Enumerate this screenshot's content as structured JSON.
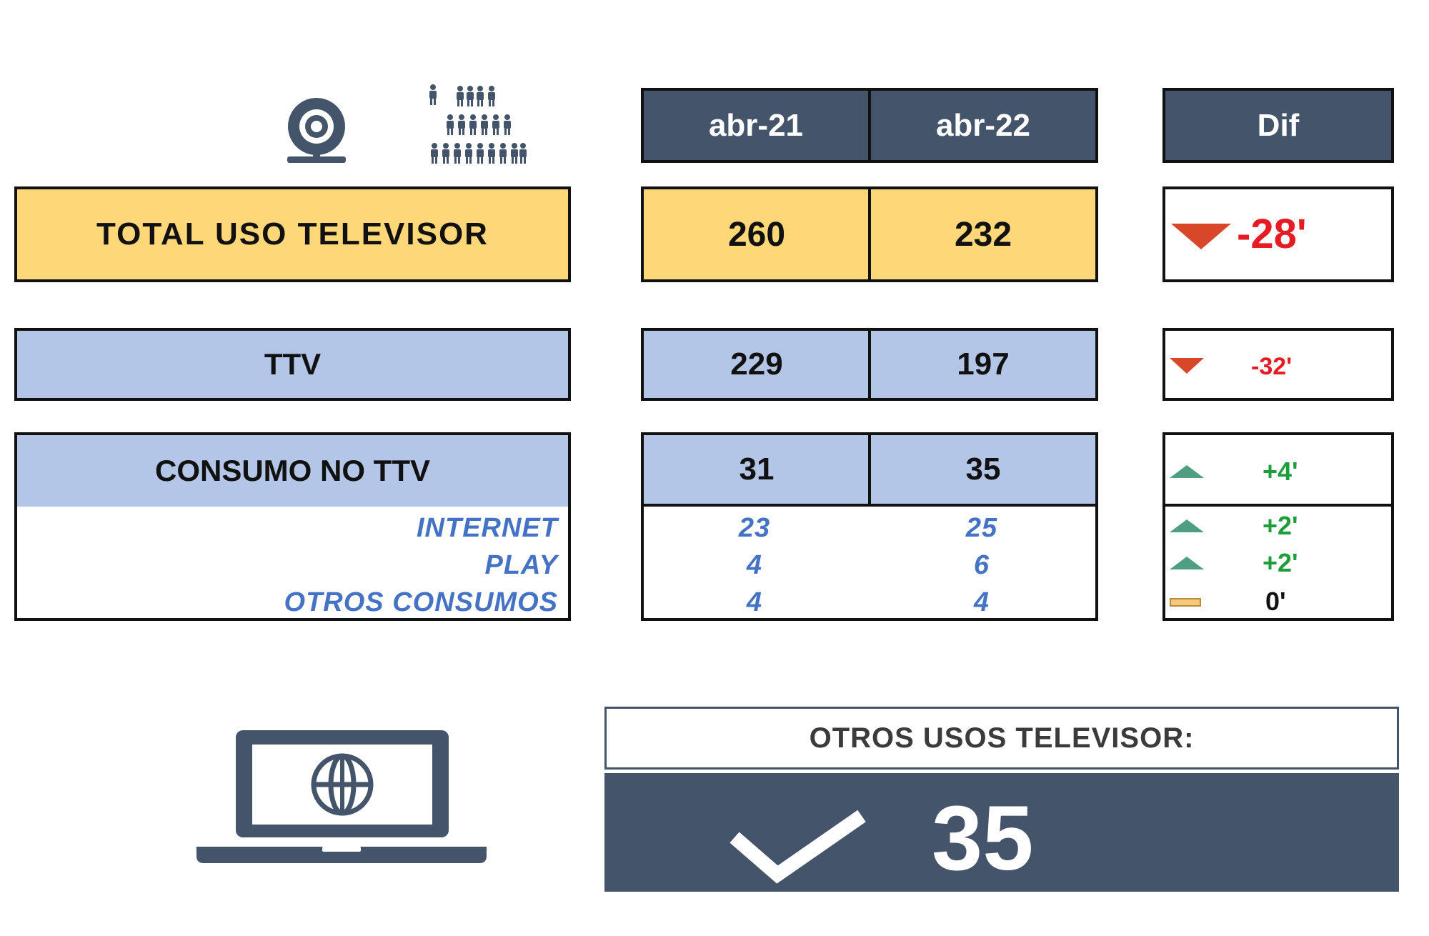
{
  "header": {
    "col1": "abr-21",
    "col2": "abr-22",
    "dif": "Dif"
  },
  "icons": {
    "top_left": "webcam-icon",
    "top_right": "people-group-icon",
    "bottom_left": "laptop-globe-icon",
    "checkmark": "checkmark-icon"
  },
  "rows": {
    "total": {
      "label": "TOTAL USO TELEVISOR",
      "v1": "260",
      "v2": "232",
      "dif": "-28'"
    },
    "ttv": {
      "label": "TTV",
      "v1": "229",
      "v2": "197",
      "dif": "-32'"
    },
    "no_ttv": {
      "label": "CONSUMO NO TTV",
      "v1": "31",
      "v2": "35",
      "dif": "+4'"
    }
  },
  "sub_rows": [
    {
      "label": "INTERNET",
      "v1": "23",
      "v2": "25",
      "dif": "+2'"
    },
    {
      "label": "PLAY",
      "v1": "4",
      "v2": "6",
      "dif": "+2'"
    },
    {
      "label": "OTROS CONSUMOS",
      "v1": "4",
      "v2": "4",
      "dif": "0'"
    }
  ],
  "summary": {
    "title": "OTROS USOS TELEVISOR:",
    "value": "35"
  },
  "colors": {
    "dark": "#44546a",
    "yellow": "#fed878",
    "light_blue": "#b4c6e7",
    "italic_blue": "#4472c4",
    "red": "#e61c24",
    "green": "#1e9e3a"
  }
}
